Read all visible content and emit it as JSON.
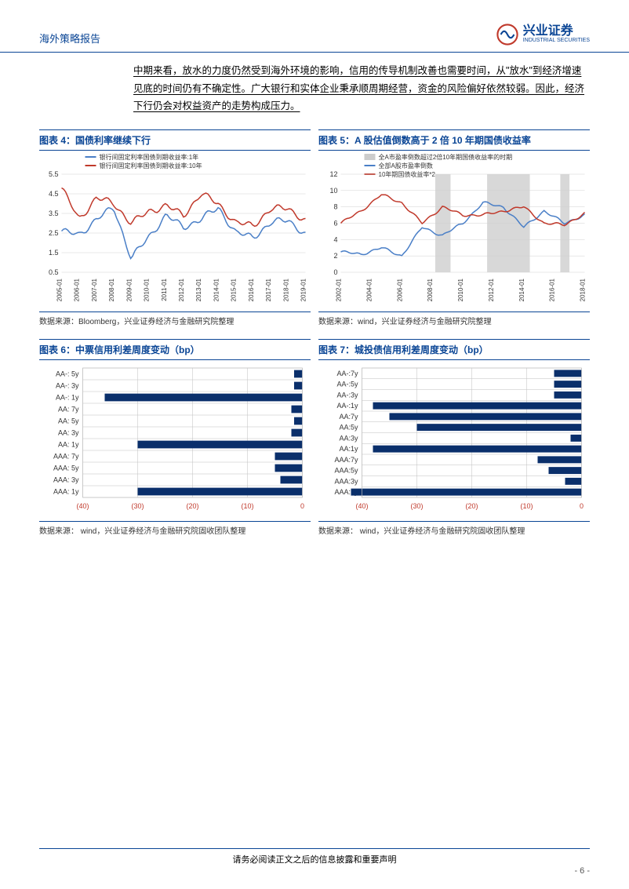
{
  "header": {
    "title": "海外策略报告",
    "logo_cn": "兴业证券",
    "logo_en": "INDUSTRIAL SECURITIES"
  },
  "body_paragraph": "中期来看，放水的力度仍然受到海外环境的影响，信用的传导机制改善也需要时间，从\"放水\"到经济增速见底的时间仍有不确定性。广大银行和实体企业秉承顺周期经营，资金的风险偏好依然较弱。因此，经济下行仍会对权益资产的走势构成压力。",
  "chart4": {
    "title": "图表 4：国债利率继续下行",
    "type": "line",
    "legend": [
      "银行间固定利率国债到期收益率:1年",
      "银行间固定利率国债到期收益率:10年"
    ],
    "legend_colors": [
      "#4a7fc7",
      "#c0392b"
    ],
    "x_labels": [
      "2005-01",
      "2006-01",
      "2007-01",
      "2008-01",
      "2009-01",
      "2010-01",
      "2011-01",
      "2012-01",
      "2013-01",
      "2014-01",
      "2015-01",
      "2016-01",
      "2017-01",
      "2018-01",
      "2019-01"
    ],
    "y_ticks": [
      0.5,
      1.5,
      2.5,
      3.5,
      4.5,
      5.5
    ],
    "ylim": [
      0.5,
      5.5
    ],
    "series": [
      {
        "color": "#4a7fc7",
        "width": 1.5,
        "data": [
          2.6,
          2.4,
          3.2,
          3.8,
          1.2,
          2.3,
          3.4,
          2.8,
          3.2,
          3.8,
          2.5,
          2.3,
          3.0,
          3.2,
          2.4
        ]
      },
      {
        "color": "#c0392b",
        "width": 1.5,
        "data": [
          4.8,
          3.2,
          4.3,
          4.0,
          3.0,
          3.6,
          3.9,
          3.4,
          4.5,
          4.0,
          3.0,
          2.9,
          3.7,
          3.8,
          3.1
        ]
      }
    ],
    "grid_color": "#d0d0d0",
    "background_color": "#ffffff",
    "axis_fontsize": 9,
    "source": "数据来源：Bloomberg，兴业证券经济与金融研究院整理"
  },
  "chart5": {
    "title": "图表 5：A 股估值倒数高于 2 倍 10 年期国债收益率",
    "type": "line",
    "legend": [
      "全A市盈率倒数超过2倍10年期国债收益率的时期",
      "全部A股市盈率倒数",
      "10年期国债收益率*2"
    ],
    "legend_colors": [
      "#cccccc",
      "#4a7fc7",
      "#c0392b"
    ],
    "x_labels": [
      "2002-01",
      "2004-01",
      "2006-01",
      "2008-01",
      "2010-01",
      "2012-01",
      "2014-01",
      "2016-01",
      "2018-01"
    ],
    "y_ticks": [
      0,
      2,
      4,
      6,
      8,
      10,
      12
    ],
    "ylim": [
      0,
      12
    ],
    "band_regions": [
      [
        3.1,
        3.6
      ],
      [
        4.8,
        6.2
      ],
      [
        7.2,
        7.5
      ],
      [
        8.3,
        8.6
      ]
    ],
    "band_color": "#d8d8d8",
    "series": [
      {
        "color": "#4a7fc7",
        "width": 1.5,
        "data": [
          2.5,
          2.2,
          3.0,
          2.0,
          5.5,
          4.5,
          6.0,
          8.5,
          8.0,
          5.5,
          7.5,
          6.0,
          7.0
        ]
      },
      {
        "color": "#c0392b",
        "width": 1.5,
        "data": [
          6.0,
          7.5,
          9.5,
          8.5,
          6.0,
          8.0,
          7.0,
          7.0,
          7.5,
          8.0,
          6.0,
          5.8,
          7.2
        ]
      }
    ],
    "grid_color": "#d0d0d0",
    "background_color": "#ffffff",
    "axis_fontsize": 9,
    "source": "数据来源：wind，兴业证券经济与金融研究院整理"
  },
  "chart6": {
    "title": "图表 6：中票信用利差周度变动（bp）",
    "type": "barh",
    "categories": [
      "AA-: 5y",
      "AA-: 3y",
      "AA-: 1y",
      "AA: 7y",
      "AA: 5y",
      "AA: 3y",
      "AA: 1y",
      "AAA: 7y",
      "AAA: 5y",
      "AAA: 3y",
      "AAA: 1y"
    ],
    "values": [
      -1.5,
      -1.5,
      -36,
      -2,
      -1.5,
      -2,
      -30,
      -5,
      -5,
      -4,
      -30
    ],
    "x_ticks": [
      -40,
      -30,
      -20,
      -10,
      0
    ],
    "x_tick_labels": [
      "(40)",
      "(30)",
      "(20)",
      "(10)",
      "0"
    ],
    "x_tick_color": "#c0392b",
    "bar_color": "#0a2f6b",
    "grid_color": "#bfbfbf",
    "background_color": "#ffffff",
    "axis_fontsize": 9,
    "source": "数据来源：  wind，兴业证券经济与金融研究院固收团队整理"
  },
  "chart7": {
    "title": "图表 7：城投债信用利差周度变动（bp）",
    "type": "barh",
    "categories": [
      "AA-:7y",
      "AA-:5y",
      "AA-:3y",
      "AA-:1y",
      "AA:7y",
      "AA:5y",
      "AA:3y",
      "AA:1y",
      "AAA:7y",
      "AAA:5y",
      "AAA:3y",
      "AAA:1y"
    ],
    "values": [
      -5,
      -5,
      -5,
      -38,
      -35,
      -30,
      -2,
      -38,
      -8,
      -6,
      -3,
      -42
    ],
    "x_ticks": [
      -40,
      -30,
      -20,
      -10,
      0
    ],
    "x_tick_labels": [
      "(40)",
      "(30)",
      "(20)",
      "(10)",
      "0"
    ],
    "x_tick_color": "#c0392b",
    "bar_color": "#0a2f6b",
    "grid_color": "#bfbfbf",
    "background_color": "#ffffff",
    "axis_fontsize": 9,
    "source": "数据来源：  wind，兴业证券经济与金融研究院固收团队整理"
  },
  "footer": {
    "text": "请务必阅读正文之后的信息披露和重要声明",
    "page": "- 6 -"
  }
}
